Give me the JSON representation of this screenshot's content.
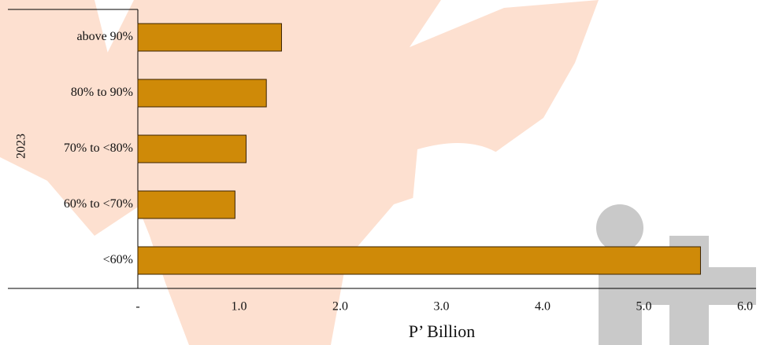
{
  "chart_data": {
    "type": "bar",
    "orientation": "horizontal",
    "y_label": "2023",
    "x_label": "P’ Billion",
    "categories": [
      "above 90%",
      "80% to 90%",
      "70% to <80%",
      "60% to <70%",
      "<60%"
    ],
    "values": [
      1.42,
      1.27,
      1.07,
      0.96,
      5.56
    ],
    "color": "#cf8a08",
    "xlim": [
      0,
      6
    ],
    "xticks": [
      {
        "value": 0,
        "label": "-"
      },
      {
        "value": 1,
        "label": "1.0"
      },
      {
        "value": 2,
        "label": "2.0"
      },
      {
        "value": 3,
        "label": "3.0"
      },
      {
        "value": 4,
        "label": "4.0"
      },
      {
        "value": 5,
        "label": "5.0"
      },
      {
        "value": 6,
        "label": "6.0"
      }
    ]
  }
}
